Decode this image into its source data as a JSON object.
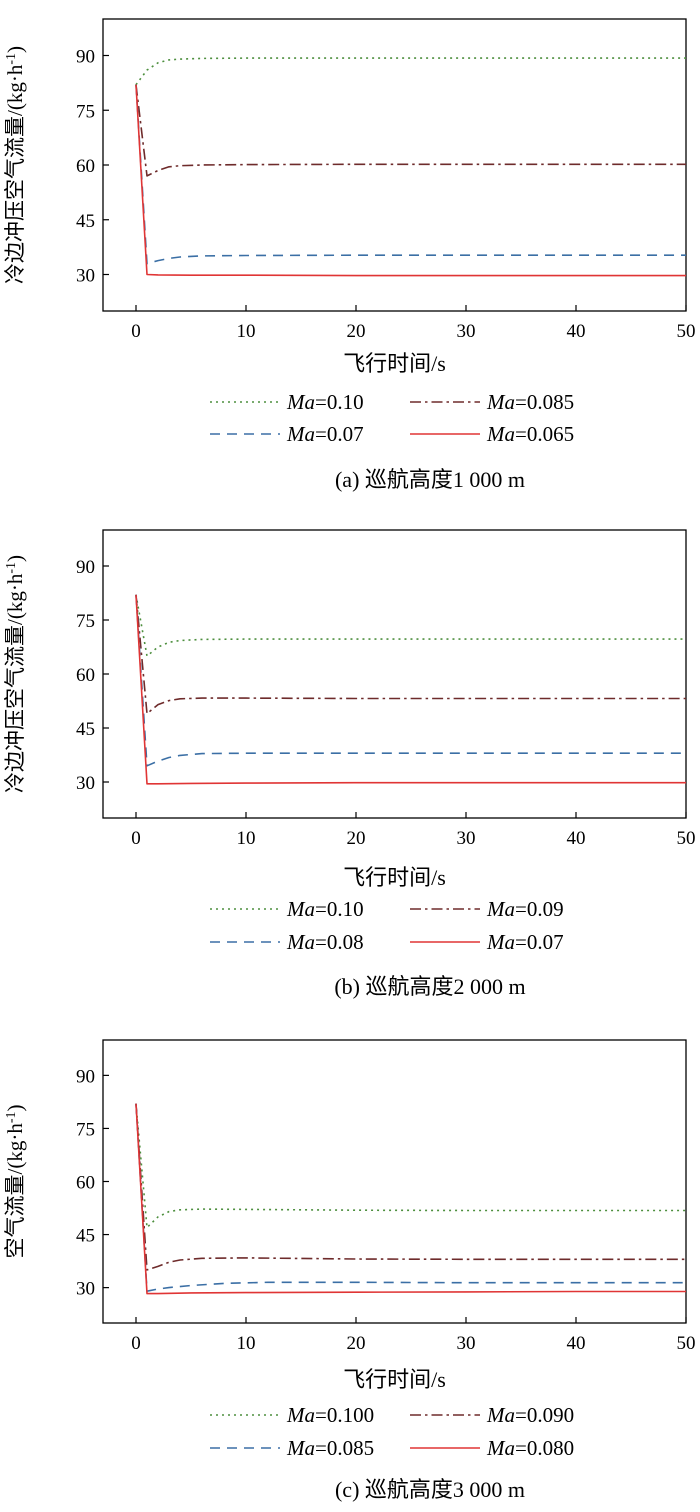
{
  "chart_data": [
    {
      "type": "line",
      "caption": "(a) 巡航高度1 000 m",
      "xlabel": "飞行时间/s",
      "ylabel_main": "冷边冲压空气流量/(kg·h",
      "ylabel_sup": "-1",
      "ylabel_tail": ")",
      "xlim": [
        -3,
        50
      ],
      "ylim": [
        20,
        100
      ],
      "xticks": [
        0,
        10,
        20,
        30,
        40,
        50
      ],
      "yticks": [
        30,
        45,
        60,
        75,
        90
      ],
      "series": [
        {
          "name_prefix": "Ma",
          "name_value": "=0.10",
          "color": "#4d8f3e",
          "style": "dotted",
          "x": [
            0,
            1,
            2,
            3,
            4,
            6,
            10,
            20,
            30,
            40,
            50
          ],
          "y": [
            82,
            86,
            88,
            88.8,
            89,
            89.2,
            89.3,
            89.3,
            89.3,
            89.3,
            89.3
          ]
        },
        {
          "name_prefix": "Ma",
          "name_value": "=0.085",
          "color": "#6e2b2b",
          "style": "dashdot",
          "x": [
            0,
            1,
            2,
            3,
            4,
            6,
            10,
            20,
            30,
            40,
            50
          ],
          "y": [
            82,
            57,
            58.5,
            59.5,
            59.8,
            60,
            60.1,
            60.2,
            60.2,
            60.2,
            60.2
          ]
        },
        {
          "name_prefix": "Ma",
          "name_value": "=0.07",
          "color": "#3b6fa5",
          "style": "dashed",
          "x": [
            0,
            1,
            2,
            3,
            4,
            6,
            10,
            20,
            30,
            40,
            50
          ],
          "y": [
            82,
            33,
            33.8,
            34.4,
            34.8,
            35.1,
            35.2,
            35.3,
            35.3,
            35.3,
            35.3
          ]
        },
        {
          "name_prefix": "Ma",
          "name_value": "=0.065",
          "color": "#e03535",
          "style": "solid",
          "x": [
            0,
            1,
            2,
            5,
            10,
            20,
            30,
            40,
            50
          ],
          "y": [
            82,
            30,
            29.9,
            29.8,
            29.8,
            29.7,
            29.7,
            29.7,
            29.7
          ]
        }
      ]
    },
    {
      "type": "line",
      "caption": "(b) 巡航高度2 000 m",
      "xlabel": "飞行时间/s",
      "ylabel_main": "冷边冲压空气流量/(kg·h",
      "ylabel_sup": "-1",
      "ylabel_tail": ")",
      "xlim": [
        -3,
        50
      ],
      "ylim": [
        20,
        100
      ],
      "xticks": [
        0,
        10,
        20,
        30,
        40,
        50
      ],
      "yticks": [
        30,
        45,
        60,
        75,
        90
      ],
      "series": [
        {
          "name_prefix": "Ma",
          "name_value": "=0.10",
          "color": "#4d8f3e",
          "style": "dotted",
          "x": [
            0,
            1,
            2,
            3,
            4,
            6,
            10,
            20,
            30,
            40,
            50
          ],
          "y": [
            82,
            65,
            67.5,
            68.8,
            69.3,
            69.6,
            69.7,
            69.7,
            69.7,
            69.7,
            69.7
          ]
        },
        {
          "name_prefix": "Ma",
          "name_value": "=0.09",
          "color": "#6e2b2b",
          "style": "dashdot",
          "x": [
            0,
            1,
            2,
            3,
            4,
            6,
            10,
            20,
            30,
            40,
            50
          ],
          "y": [
            82,
            49,
            51.5,
            52.6,
            53.1,
            53.3,
            53.3,
            53.2,
            53.2,
            53.2,
            53.2
          ]
        },
        {
          "name_prefix": "Ma",
          "name_value": "=0.08",
          "color": "#3b6fa5",
          "style": "dashed",
          "x": [
            0,
            1,
            2,
            3,
            4,
            6,
            10,
            20,
            30,
            40,
            50
          ],
          "y": [
            82,
            34.5,
            35.8,
            36.8,
            37.4,
            37.9,
            38,
            38,
            38,
            38,
            38
          ]
        },
        {
          "name_prefix": "Ma",
          "name_value": "=0.07",
          "color": "#e03535",
          "style": "solid",
          "x": [
            0,
            1,
            2,
            5,
            10,
            20,
            30,
            40,
            50
          ],
          "y": [
            82,
            29.5,
            29.5,
            29.6,
            29.7,
            29.8,
            29.8,
            29.8,
            29.8
          ]
        }
      ]
    },
    {
      "type": "line",
      "caption": "(c) 巡航高度3 000 m",
      "xlabel": "飞行时间/s",
      "ylabel_main": "空气流量/(kg·h",
      "ylabel_sup": "-1",
      "ylabel_tail": ")",
      "xlim": [
        -3,
        50
      ],
      "ylim": [
        20,
        100
      ],
      "xticks": [
        0,
        10,
        20,
        30,
        40,
        50
      ],
      "yticks": [
        30,
        45,
        60,
        75,
        90
      ],
      "series": [
        {
          "name_prefix": "Ma",
          "name_value": "=0.100",
          "color": "#4d8f3e",
          "style": "dotted",
          "x": [
            0,
            1,
            2,
            3,
            4,
            6,
            10,
            20,
            30,
            40,
            50
          ],
          "y": [
            82,
            47,
            50,
            51.5,
            52,
            52.2,
            52.1,
            51.9,
            51.8,
            51.8,
            51.8
          ]
        },
        {
          "name_prefix": "Ma",
          "name_value": "=0.090",
          "color": "#6e2b2b",
          "style": "dashdot",
          "x": [
            0,
            1,
            2,
            3,
            4,
            6,
            10,
            20,
            30,
            40,
            50
          ],
          "y": [
            82,
            35,
            36,
            37.2,
            37.8,
            38.3,
            38.4,
            38.1,
            38,
            38,
            38
          ]
        },
        {
          "name_prefix": "Ma",
          "name_value": "=0.085",
          "color": "#3b6fa5",
          "style": "dashed",
          "x": [
            0,
            1,
            2,
            3,
            5,
            8,
            12,
            20,
            30,
            40,
            50
          ],
          "y": [
            82,
            29,
            29.6,
            30,
            30.6,
            31.2,
            31.5,
            31.5,
            31.4,
            31.4,
            31.4
          ]
        },
        {
          "name_prefix": "Ma",
          "name_value": "=0.080",
          "color": "#e03535",
          "style": "solid",
          "x": [
            0,
            1,
            2,
            5,
            10,
            20,
            30,
            40,
            50
          ],
          "y": [
            82,
            28.3,
            28.3,
            28.5,
            28.6,
            28.7,
            28.8,
            28.9,
            28.9
          ]
        }
      ]
    }
  ]
}
